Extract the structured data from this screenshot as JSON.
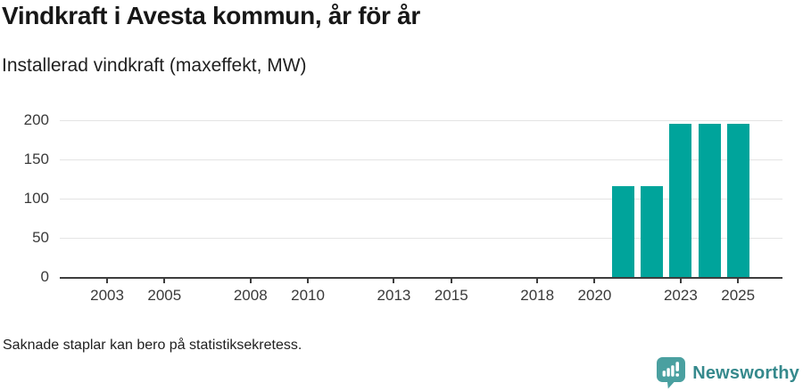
{
  "header": {
    "title": "Vindkraft i Avesta kommun, år för år",
    "subtitle": "Installerad vindkraft (maxeffekt, MW)"
  },
  "footer": {
    "note": "Saknade staplar kan bero på statistiksekretess.",
    "brand": {
      "name": "Newsworthy",
      "icon": "speech-bubble-bar-chart-icon"
    }
  },
  "colors": {
    "bar": "#00a49b",
    "gridline": "#e4e4e4",
    "axis": "#3d3d3d",
    "tick_label": "#3a3a3a",
    "title_text": "#171717",
    "brand_text": "#35898c",
    "brand_bubble": "#4aa0a0"
  },
  "chart_data": {
    "type": "bar",
    "title": "Vindkraft i Avesta kommun, år för år",
    "subtitle": "Installerad vindkraft (maxeffekt, MW)",
    "x": [
      2021,
      2022,
      2023,
      2024,
      2025
    ],
    "values": [
      116,
      116,
      195,
      195,
      195
    ],
    "xlabel": "",
    "ylabel": "Installerad vindkraft (maxeffekt, MW)",
    "xlim": [
      2001.35,
      2026.55
    ],
    "ylim": [
      0,
      200
    ],
    "yticks": [
      0,
      50,
      100,
      150,
      200
    ],
    "xticks": [
      2003,
      2005,
      2008,
      2010,
      2013,
      2015,
      2018,
      2020,
      2023,
      2025
    ],
    "grid": "horizontal",
    "legend": "none",
    "footnote": "Saknade staplar kan bero på statistiksekretess."
  }
}
